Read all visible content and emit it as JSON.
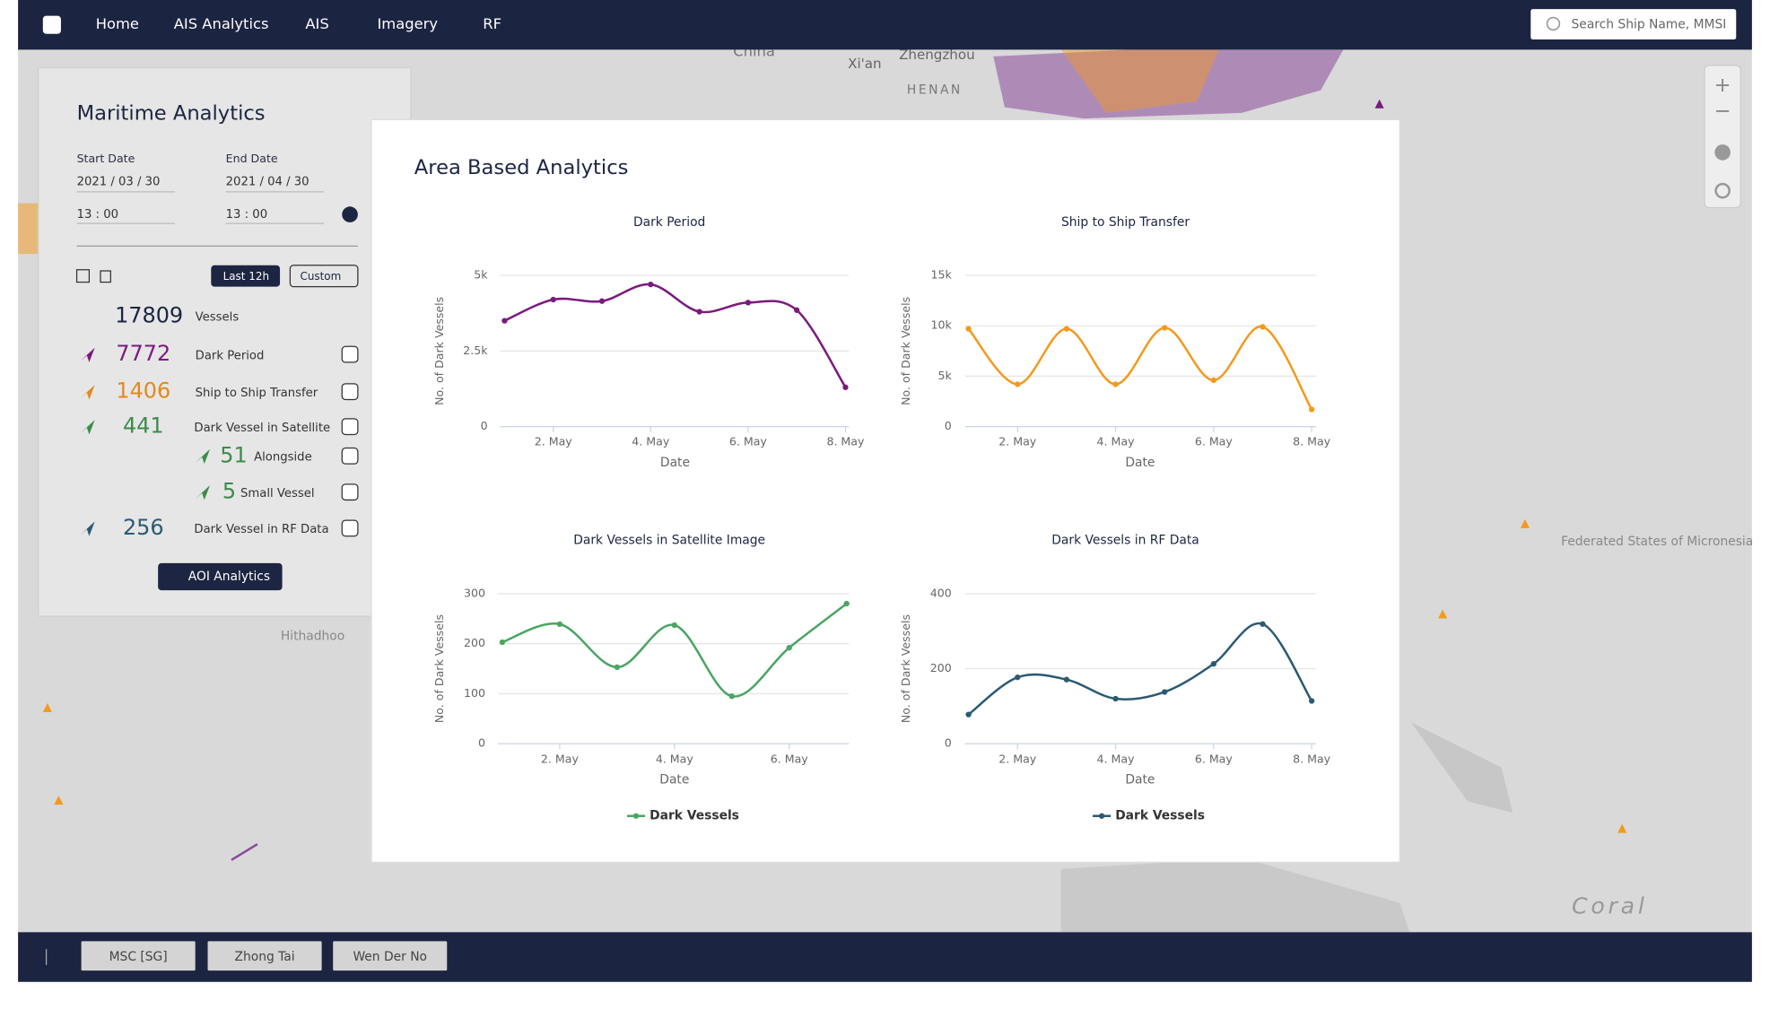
{
  "nav": {
    "items": [
      "Home",
      "AIS Analytics",
      "AIS",
      "Imagery",
      "RF"
    ],
    "search_placeholder": "Search Ship Name, MMSI"
  },
  "map_labels": [
    "China",
    "Xi'an",
    "Zhengzhou",
    "HENAN",
    "Hithadhoo",
    "Federated States of Micronesia",
    "Coral"
  ],
  "panel": {
    "title": "Maritime Analytics",
    "start_label": "Start Date",
    "start_date": "2021 / 03 / 30",
    "start_time": "13 : 00",
    "end_label": "End Date",
    "end_date": "2021 / 04 / 30",
    "end_time": "13 : 00",
    "buttons": [
      "Last 12h",
      "Custom"
    ],
    "stats": [
      {
        "count": 17809,
        "label": "Vessels"
      },
      {
        "count": 7772,
        "label": "Dark Period"
      },
      {
        "count": 1406,
        "label": "Ship to Ship Transfer"
      },
      {
        "count": 441,
        "label": "Dark Vessel in Satellite"
      },
      {
        "count": 51,
        "label": "Alongside"
      },
      {
        "count": 5,
        "label": "Small Vessel"
      },
      {
        "count": 256,
        "label": "Dark Vessel in RF Data"
      }
    ],
    "aoi_button": "AOI Analytics"
  },
  "modal": {
    "title": "Area Based Analytics"
  },
  "bottom_tabs": [
    "MSC [SG]",
    "Zhong Tai",
    "Wen Der No"
  ],
  "chart_data": [
    {
      "type": "line",
      "title": "Dark Period",
      "y_label": "No. of Dark Vessels",
      "x_label": "Date",
      "categories": [
        null,
        "2. May",
        null,
        "4. May",
        null,
        "6. May",
        null,
        "8. May"
      ],
      "series": [
        {
          "color": "#7b1a7e",
          "values": [
            3500,
            4200,
            4150,
            4700,
            3800,
            4100,
            3850,
            1300
          ]
        }
      ],
      "ylim": [
        0,
        5000
      ],
      "yticks": [
        0,
        {
          "value": 2500,
          "label": "2.5k"
        },
        {
          "value": 5000,
          "label": "5k"
        }
      ],
      "grid": true
    },
    {
      "type": "line",
      "title": "Ship to Ship Transfer",
      "y_label": "No. of Dark Vessels",
      "x_label": "Date",
      "categories": [
        null,
        "2. May",
        null,
        "4. May",
        null,
        "6. May",
        null,
        "8. May"
      ],
      "series": [
        {
          "color": "#f39a1e",
          "values": [
            9700,
            4200,
            9700,
            4200,
            9800,
            4600,
            9900,
            1700
          ]
        }
      ],
      "ylim": [
        0,
        15000
      ],
      "yticks": [
        0,
        {
          "value": 5000,
          "label": "5k"
        },
        {
          "value": 10000,
          "label": "10k"
        },
        {
          "value": 15000,
          "label": "15k"
        }
      ],
      "grid": true
    },
    {
      "type": "line",
      "title": "Dark Vessels in Satellite Image",
      "y_label": "No. of Dark Vessels",
      "x_label": "Date",
      "categories": [
        null,
        "2. May",
        null,
        "4. May",
        null,
        "6. May",
        null
      ],
      "series": [
        {
          "name": "Dark Vessels",
          "color": "#4aa564",
          "values": [
            203,
            239,
            153,
            237,
            95,
            192,
            280
          ]
        }
      ],
      "ylim": [
        0,
        300
      ],
      "yticks": [
        0,
        100,
        200,
        300
      ],
      "grid": true
    },
    {
      "type": "line",
      "title": "Dark Vessels in RF Data",
      "y_label": "No. of Dark Vessels",
      "x_label": "Date",
      "categories": [
        null,
        "2. May",
        null,
        "4. May",
        null,
        "6. May",
        null,
        "8. May"
      ],
      "series": [
        {
          "name": "Dark Vessels",
          "color": "#2b5a73",
          "values": [
            78,
            177,
            171,
            120,
            138,
            213,
            319,
            114
          ]
        }
      ],
      "ylim": [
        0,
        400
      ],
      "yticks": [
        0,
        200,
        400
      ],
      "grid": true
    }
  ]
}
